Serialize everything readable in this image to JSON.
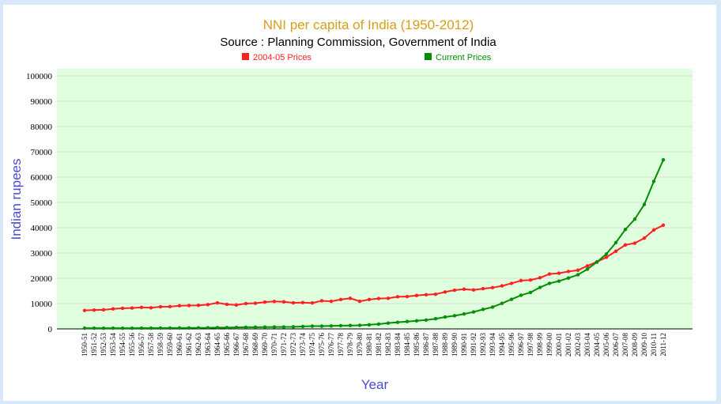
{
  "chart_data": {
    "type": "line",
    "title": "NNI per capita of India (1950-2012)",
    "subtitle": "Source : Planning Commission, Government of India",
    "xlabel": "Year",
    "ylabel": "Indian rupees",
    "ylim": [
      0,
      100000
    ],
    "yticks": [
      0,
      10000,
      20000,
      30000,
      40000,
      50000,
      60000,
      70000,
      80000,
      90000,
      100000
    ],
    "grid": true,
    "legend_placement": "top",
    "colors": {
      "title": "#d4a017",
      "axis_label": "#4b4bcc",
      "plot_bg": "#dfffdf",
      "grid": "#e8d6d6"
    },
    "categories": [
      "1950-51",
      "1951-52",
      "1952-53",
      "1953-54",
      "1954-55",
      "1955-56",
      "1956-57",
      "1957-58",
      "1958-59",
      "1959-60",
      "1960-61",
      "1961-62",
      "1962-63",
      "1963-64",
      "1964-65",
      "1965-66",
      "1966-67",
      "1967-68",
      "1968-69",
      "1969-70",
      "1970-71",
      "1971-72",
      "1972-73",
      "1973-74",
      "1974-75",
      "1975-76",
      "1976-77",
      "1977-78",
      "1978-79",
      "1979-80",
      "1980-81",
      "1981-82",
      "1982-83",
      "1983-84",
      "1984-85",
      "1985-86",
      "1986-87",
      "1987-88",
      "1988-89",
      "1989-90",
      "1990-91",
      "1991-92",
      "1992-93",
      "1993-94",
      "1994-95",
      "1995-96",
      "1996-97",
      "1997-98",
      "1998-99",
      "1999-00",
      "2000-01",
      "2001-02",
      "2002-03",
      "2003-04",
      "2004-05",
      "2005-06",
      "2006-07",
      "2007-08",
      "2008-09",
      "2009-10",
      "2010-11",
      "2011-12"
    ],
    "series": [
      {
        "name": "2004-05 Prices",
        "color": "#ff2020",
        "values": [
          7300,
          7450,
          7550,
          7900,
          8150,
          8250,
          8500,
          8350,
          8750,
          8800,
          9150,
          9250,
          9300,
          9600,
          10300,
          9700,
          9450,
          10000,
          10150,
          10600,
          10850,
          10700,
          10300,
          10400,
          10250,
          11100,
          10900,
          11600,
          12100,
          10900,
          11600,
          12000,
          12100,
          12700,
          12800,
          13200,
          13500,
          13700,
          14600,
          15300,
          15700,
          15400,
          15900,
          16300,
          17000,
          18000,
          19100,
          19300,
          20200,
          21700,
          22000,
          22700,
          23200,
          24900,
          26500,
          28300,
          30700,
          33200,
          33900,
          35900,
          39100,
          41000
        ]
      },
      {
        "name": "Current Prices",
        "color": "#009000",
        "values": [
          274,
          280,
          265,
          285,
          260,
          265,
          300,
          305,
          330,
          340,
          360,
          380,
          395,
          430,
          500,
          510,
          570,
          650,
          680,
          720,
          750,
          770,
          820,
          960,
          1090,
          1090,
          1160,
          1270,
          1340,
          1410,
          1630,
          1890,
          2300,
          2600,
          2900,
          3200,
          3500,
          4000,
          4700,
          5200,
          5900,
          6700,
          7700,
          8600,
          10100,
          11700,
          13300,
          14400,
          16400,
          18000,
          18900,
          20100,
          21400,
          23600,
          26400,
          29600,
          34100,
          39300,
          43400,
          49200,
          58300,
          66800
        ]
      }
    ]
  }
}
